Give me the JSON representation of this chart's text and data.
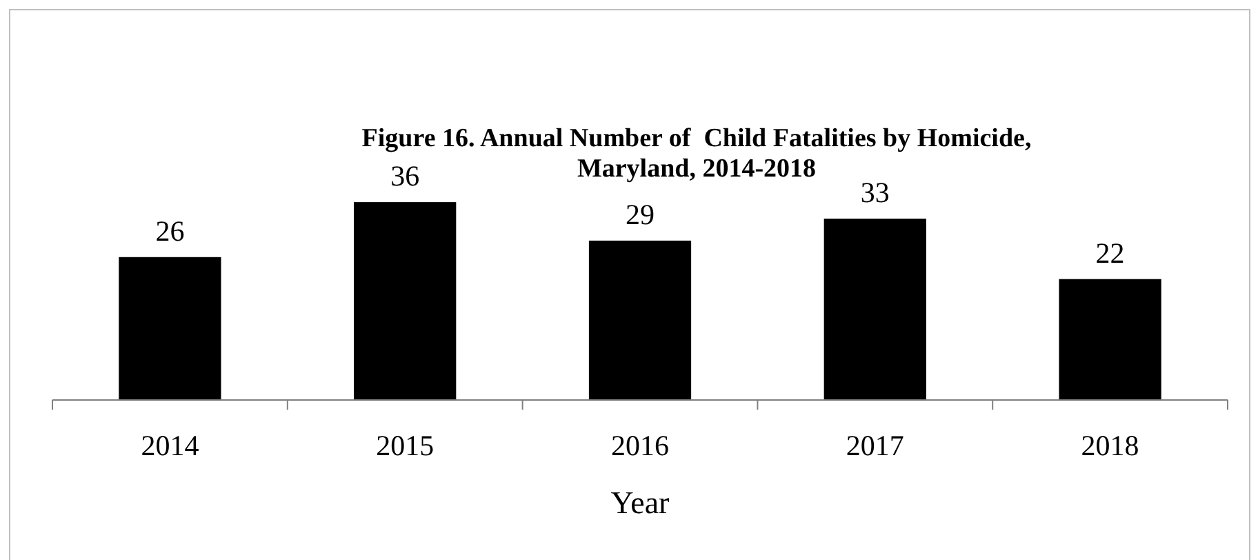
{
  "chart_data": {
    "type": "bar",
    "title": "Figure 16. Annual Number of  Child Fatalities by Homicide, Maryland, 2014-2018",
    "xlabel": "Year",
    "categories": [
      "2014",
      "2015",
      "2016",
      "2017",
      "2018"
    ],
    "values": [
      26,
      36,
      29,
      33,
      22
    ],
    "color": "#000000",
    "data_labels": true
  }
}
